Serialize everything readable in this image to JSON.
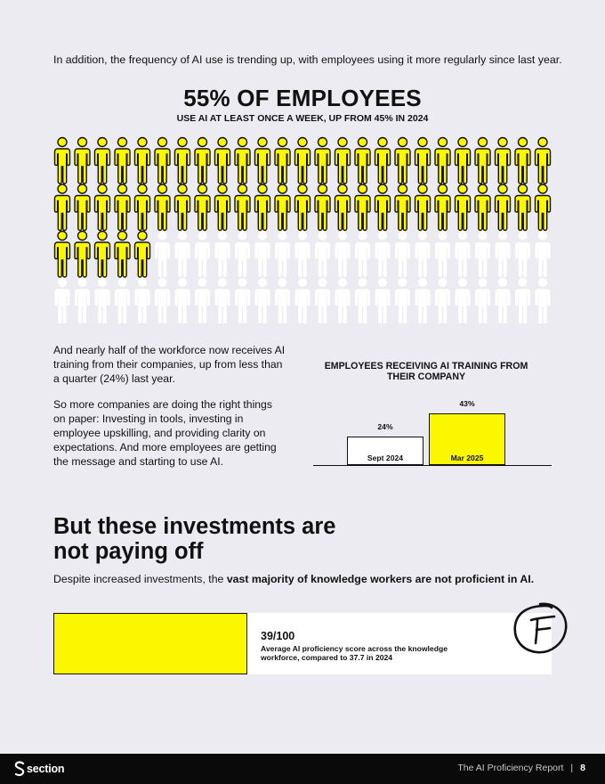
{
  "intro": "In addition, the frequency of AI use is trending up, with employees using it more regularly since last year.",
  "stat": {
    "headline": "55% OF EMPLOYEES",
    "subline": "USE AI AT LEAST ONCE A WEEK,  UP FROM 45% IN 2024",
    "icon": "person-icon",
    "highlighted_share_percent": 55,
    "colors": {
      "highlight": "#fbf701",
      "outline": "#111111",
      "muted": "#ffffff"
    }
  },
  "paragraphs": [
    "And nearly half of the workforce now receives AI training from their companies, up from less than a quarter (24%) last year.",
    "So more companies are doing the right things on paper: Investing in tools, investing in employee upskilling, and providing clarity on expectations. And more employees are getting the message and starting to use AI."
  ],
  "chart_data": {
    "type": "bar",
    "title": "EMPLOYEES RECEIVING AI TRAINING FROM THEIR COMPANY",
    "categories": [
      "Sept 2024",
      "Mar 2025"
    ],
    "values": [
      24,
      43
    ],
    "value_labels": [
      "24%",
      "43%"
    ],
    "colors": [
      "#ffffff",
      "#fbf701"
    ],
    "ylim": [
      0,
      43
    ]
  },
  "section_heading": "But these investments are not paying off",
  "despite": {
    "lead": "Despite increased investments, the ",
    "bold": "vast majority of knowledge workers are not proficient in AI."
  },
  "score": {
    "value_label": "39/100",
    "value": 39,
    "max": 100,
    "description": "Average AI proficiency score across the knowledge workforce, compared to 37.7 in 2024",
    "grade_icon": "grade-f-icon",
    "grade": "F"
  },
  "footer": {
    "logo_icon": "section-logo-icon",
    "brand": "section",
    "report_title": "The AI Proficiency Report",
    "separator": "|",
    "page_number": "8"
  }
}
